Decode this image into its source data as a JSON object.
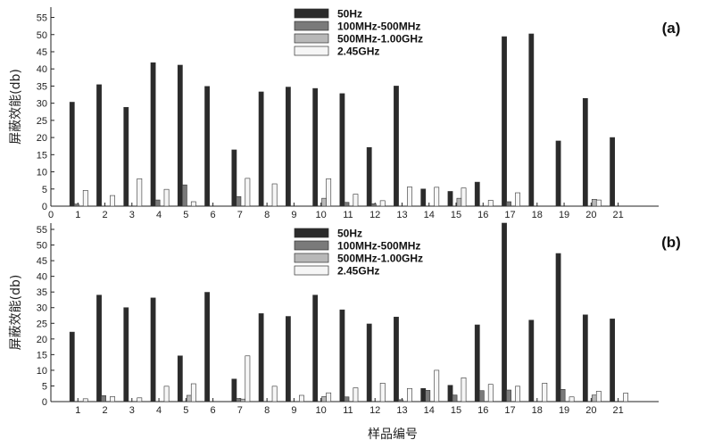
{
  "x_axis_label": "样品编号",
  "chart_data": [
    {
      "type": "bar",
      "panel_label": "(a)",
      "ylabel": "屏蔽效能(db)",
      "xlabel": "",
      "categories": [
        1,
        2,
        3,
        4,
        5,
        6,
        7,
        8,
        9,
        10,
        11,
        12,
        13,
        14,
        15,
        16,
        17,
        18,
        19,
        20,
        21
      ],
      "x_ticks": [
        0,
        1,
        2,
        3,
        4,
        5,
        6,
        7,
        8,
        9,
        10,
        11,
        12,
        13,
        14,
        15,
        16,
        17,
        18,
        19,
        20,
        21
      ],
      "xlim": [
        0,
        22.5
      ],
      "ylim": [
        0,
        58
      ],
      "y_ticks": [
        0,
        5,
        10,
        15,
        20,
        25,
        30,
        35,
        40,
        45,
        50,
        55
      ],
      "legend_position": "top-center",
      "grid": false,
      "series": [
        {
          "name": "50Hz",
          "color": "#2b2b2b",
          "values": [
            30.3,
            35.4,
            28.8,
            41.8,
            41.1,
            34.9,
            16.4,
            33.3,
            34.7,
            34.3,
            32.8,
            17.1,
            35.0,
            5.0,
            4.3,
            7.0,
            49.4,
            50.2,
            19.0,
            31.4,
            20.0
          ]
        },
        {
          "name": "100MHz-500MHz",
          "color": "#7a7a7a",
          "values": [
            0.6,
            0,
            0,
            1.8,
            6.2,
            0,
            2.8,
            0,
            0,
            0,
            1.1,
            0.7,
            0,
            0,
            0,
            0,
            1.3,
            0,
            0,
            0,
            0
          ]
        },
        {
          "name": "500MHz-1.00GHz",
          "color": "#b8b8b8",
          "values": [
            0,
            0,
            0,
            0,
            0,
            0,
            0,
            0,
            0,
            2.3,
            0,
            0,
            0,
            0,
            2.3,
            0,
            0,
            0,
            0,
            2.0,
            0
          ]
        },
        {
          "name": "2.45GHz",
          "color": "#f6f6f6",
          "values": [
            4.6,
            3.1,
            8.0,
            4.9,
            1.3,
            0,
            8.1,
            6.5,
            0,
            8.0,
            3.5,
            1.6,
            5.6,
            5.5,
            5.3,
            1.7,
            3.9,
            0,
            0,
            1.8,
            0
          ]
        }
      ]
    },
    {
      "type": "bar",
      "panel_label": "(b)",
      "ylabel": "屏蔽效能(db)",
      "xlabel": "",
      "categories": [
        1,
        2,
        3,
        4,
        5,
        6,
        7,
        8,
        9,
        10,
        11,
        12,
        13,
        14,
        15,
        16,
        17,
        18,
        19,
        20,
        21
      ],
      "x_ticks": [
        1,
        2,
        3,
        4,
        5,
        6,
        7,
        8,
        9,
        10,
        11,
        12,
        13,
        14,
        15,
        16,
        17,
        18,
        19,
        20,
        21
      ],
      "xlim": [
        0,
        22.5
      ],
      "ylim": [
        0,
        57
      ],
      "y_ticks": [
        0,
        5,
        10,
        15,
        20,
        25,
        30,
        35,
        40,
        45,
        50,
        55
      ],
      "legend_position": "top-center",
      "grid": false,
      "series": [
        {
          "name": "50Hz",
          "color": "#2b2b2b",
          "values": [
            22.2,
            34.0,
            30.0,
            33.1,
            14.6,
            34.9,
            7.2,
            28.1,
            27.2,
            34.0,
            29.3,
            24.8,
            27.0,
            4.2,
            5.2,
            24.5,
            57.0,
            26.0,
            47.3,
            27.7,
            26.4
          ]
        },
        {
          "name": "100MHz-500MHz",
          "color": "#7a7a7a",
          "values": [
            0,
            1.9,
            0,
            0,
            0,
            0,
            1.0,
            0,
            0,
            0,
            1.5,
            0,
            0.6,
            3.6,
            2.1,
            3.5,
            3.7,
            0,
            3.9,
            0,
            0
          ]
        },
        {
          "name": "500MHz-1.00GHz",
          "color": "#b8b8b8",
          "values": [
            0,
            0,
            0,
            0,
            2.0,
            0,
            0.8,
            0,
            0,
            1.6,
            0,
            0,
            0,
            0,
            0,
            0,
            0,
            0,
            0,
            2.1,
            0
          ]
        },
        {
          "name": "2.45GHz",
          "color": "#f6f6f6",
          "values": [
            0.9,
            1.6,
            1.2,
            4.9,
            5.7,
            0,
            14.6,
            4.9,
            2.0,
            2.8,
            4.4,
            5.9,
            4.2,
            10.0,
            7.6,
            5.5,
            4.9,
            5.9,
            1.5,
            3.3,
            2.7
          ]
        }
      ]
    }
  ]
}
